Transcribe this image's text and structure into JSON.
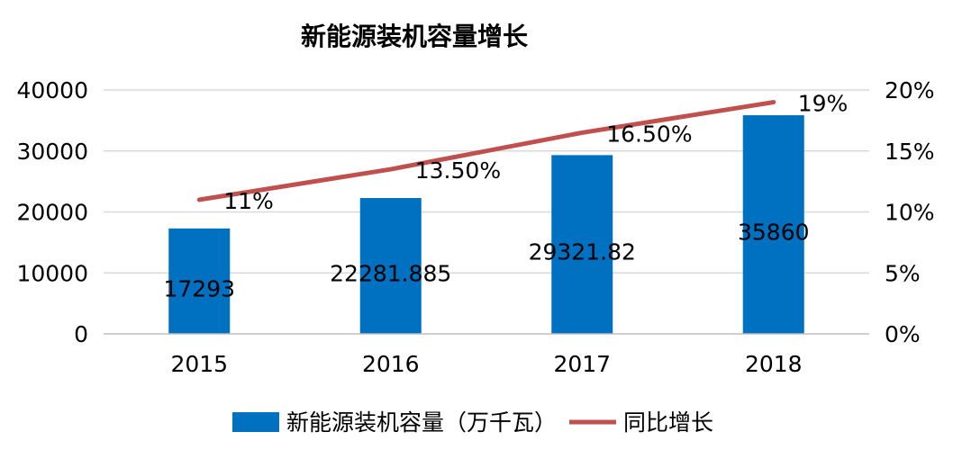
{
  "chart_data": {
    "type": "bar",
    "title": "新能源装机容量增长",
    "categories": [
      "2015",
      "2016",
      "2017",
      "2018"
    ],
    "series": [
      {
        "name": "新能源装机容量（万千瓦）",
        "type": "bar",
        "axis": "left",
        "color": "#0070c0",
        "values": [
          17293,
          22281.885,
          29321.82,
          35860
        ],
        "labels": [
          "17293",
          "22281.885",
          "29321.82",
          "35860"
        ]
      },
      {
        "name": "同比增长",
        "type": "line",
        "axis": "right",
        "color": "#c0504d",
        "values": [
          11,
          13.5,
          16.5,
          19
        ],
        "labels": [
          "11%",
          "13.50%",
          "16.50%",
          "19%"
        ]
      }
    ],
    "y_left": {
      "min": 0,
      "max": 40000,
      "ticks": [
        "0",
        "10000",
        "20000",
        "30000",
        "40000"
      ]
    },
    "y_right": {
      "min": 0,
      "max": 20,
      "ticks": [
        "0%",
        "5%",
        "10%",
        "15%",
        "20%"
      ]
    },
    "grid": true,
    "legend": "bottom"
  }
}
